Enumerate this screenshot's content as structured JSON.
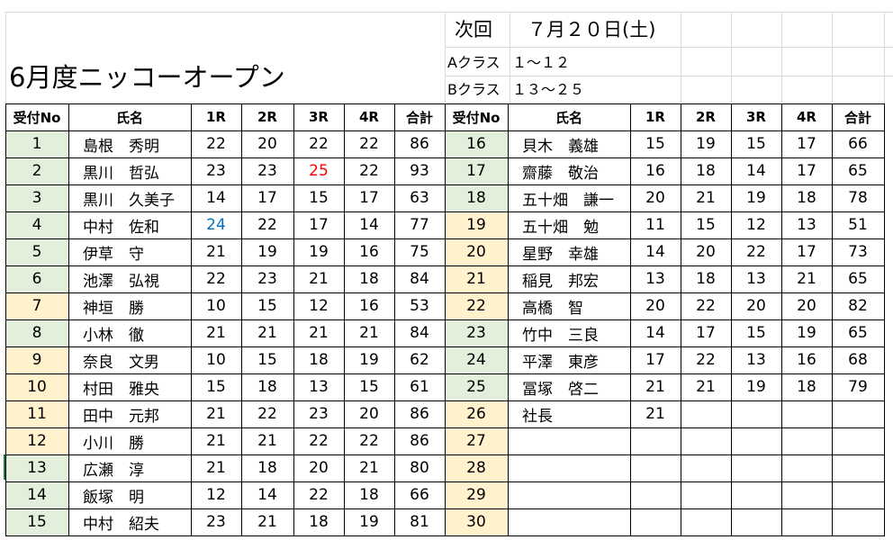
{
  "title": "6月度ニッコーオープン",
  "next": {
    "label": "次回",
    "date": "７月２０日(土)"
  },
  "classes": [
    {
      "label": "Aクラス",
      "range": "１～１２"
    },
    {
      "label": "Bクラス",
      "range": "１３～２５"
    }
  ],
  "headers": [
    "受付No",
    "氏名",
    "1R",
    "2R",
    "3R",
    "4R",
    "合計"
  ],
  "colors": {
    "green_fill": "#e2efda",
    "orange_fill": "#fff2cc",
    "red_score": "#ff0000",
    "blue_score": "#0070c0",
    "gridline": "#d9d9d9"
  },
  "left": [
    {
      "no": "1",
      "name": "島根　秀明",
      "r1": "22",
      "r2": "20",
      "r3": "22",
      "r4": "22",
      "total": "86",
      "fill": "green"
    },
    {
      "no": "2",
      "name": "黒川　哲弘",
      "r1": "23",
      "r2": "23",
      "r3": "25",
      "r4": "22",
      "total": "93",
      "fill": "green",
      "r3_color": "red"
    },
    {
      "no": "3",
      "name": "黒川　久美子",
      "r1": "14",
      "r2": "17",
      "r3": "15",
      "r4": "17",
      "total": "63",
      "fill": "green"
    },
    {
      "no": "4",
      "name": "中村　佐和",
      "r1": "24",
      "r2": "22",
      "r3": "17",
      "r4": "14",
      "total": "77",
      "fill": "green",
      "r1_color": "blue"
    },
    {
      "no": "5",
      "name": "伊草　守",
      "r1": "21",
      "r2": "19",
      "r3": "19",
      "r4": "16",
      "total": "75",
      "fill": "green"
    },
    {
      "no": "6",
      "name": "池澤　弘視",
      "r1": "22",
      "r2": "23",
      "r3": "21",
      "r4": "18",
      "total": "84",
      "fill": "green"
    },
    {
      "no": "7",
      "name": "神垣　勝",
      "r1": "10",
      "r2": "15",
      "r3": "12",
      "r4": "16",
      "total": "53",
      "fill": "orange"
    },
    {
      "no": "8",
      "name": "小林　徹",
      "r1": "21",
      "r2": "21",
      "r3": "21",
      "r4": "21",
      "total": "84",
      "fill": "green"
    },
    {
      "no": "9",
      "name": "奈良　文男",
      "r1": "10",
      "r2": "15",
      "r3": "18",
      "r4": "19",
      "total": "62",
      "fill": "orange"
    },
    {
      "no": "10",
      "name": "村田　雅央",
      "r1": "15",
      "r2": "18",
      "r3": "13",
      "r4": "15",
      "total": "61",
      "fill": "orange"
    },
    {
      "no": "11",
      "name": "田中　元邦",
      "r1": "21",
      "r2": "22",
      "r3": "23",
      "r4": "20",
      "total": "86",
      "fill": "orange"
    },
    {
      "no": "12",
      "name": "小川　勝",
      "r1": "21",
      "r2": "21",
      "r3": "22",
      "r4": "22",
      "total": "86",
      "fill": "orange"
    },
    {
      "no": "13",
      "name": "広瀬　淳",
      "r1": "21",
      "r2": "18",
      "r3": "20",
      "r4": "21",
      "total": "80",
      "fill": "green"
    },
    {
      "no": "14",
      "name": "飯塚　明",
      "r1": "12",
      "r2": "14",
      "r3": "22",
      "r4": "18",
      "total": "66",
      "fill": "green"
    },
    {
      "no": "15",
      "name": "中村　紹夫",
      "r1": "23",
      "r2": "21",
      "r3": "18",
      "r4": "19",
      "total": "81",
      "fill": "green"
    }
  ],
  "right": [
    {
      "no": "16",
      "name": "貝木　義雄",
      "r1": "15",
      "r2": "19",
      "r3": "15",
      "r4": "17",
      "total": "66",
      "fill": "green"
    },
    {
      "no": "17",
      "name": "齋藤　敬治",
      "r1": "16",
      "r2": "18",
      "r3": "14",
      "r4": "17",
      "total": "65",
      "fill": "green"
    },
    {
      "no": "18",
      "name": "五十畑　謙一",
      "r1": "20",
      "r2": "21",
      "r3": "19",
      "r4": "18",
      "total": "78",
      "fill": "green"
    },
    {
      "no": "19",
      "name": "五十畑　勉",
      "r1": "11",
      "r2": "15",
      "r3": "12",
      "r4": "13",
      "total": "51",
      "fill": "orange"
    },
    {
      "no": "20",
      "name": "星野　幸雄",
      "r1": "14",
      "r2": "20",
      "r3": "22",
      "r4": "17",
      "total": "73",
      "fill": "orange"
    },
    {
      "no": "21",
      "name": "稲見　邦宏",
      "r1": "13",
      "r2": "18",
      "r3": "13",
      "r4": "21",
      "total": "65",
      "fill": "orange"
    },
    {
      "no": "22",
      "name": "高橋　智",
      "r1": "20",
      "r2": "22",
      "r3": "20",
      "r4": "20",
      "total": "82",
      "fill": "orange"
    },
    {
      "no": "23",
      "name": "竹中　三良",
      "r1": "14",
      "r2": "17",
      "r3": "15",
      "r4": "19",
      "total": "65",
      "fill": "green"
    },
    {
      "no": "24",
      "name": "平澤　東彦",
      "r1": "17",
      "r2": "22",
      "r3": "13",
      "r4": "16",
      "total": "68",
      "fill": "green"
    },
    {
      "no": "25",
      "name": "冨塚　啓二",
      "r1": "21",
      "r2": "21",
      "r3": "19",
      "r4": "18",
      "total": "79",
      "fill": "green"
    },
    {
      "no": "26",
      "name": "社長",
      "r1": "21",
      "r2": "",
      "r3": "",
      "r4": "",
      "total": "",
      "fill": "orange"
    },
    {
      "no": "27",
      "name": "",
      "r1": "",
      "r2": "",
      "r3": "",
      "r4": "",
      "total": "",
      "fill": "orange"
    },
    {
      "no": "28",
      "name": "",
      "r1": "",
      "r2": "",
      "r3": "",
      "r4": "",
      "total": "",
      "fill": "orange"
    },
    {
      "no": "29",
      "name": "",
      "r1": "",
      "r2": "",
      "r3": "",
      "r4": "",
      "total": "",
      "fill": "orange"
    },
    {
      "no": "30",
      "name": "",
      "r1": "",
      "r2": "",
      "r3": "",
      "r4": "",
      "total": "",
      "fill": "orange"
    }
  ]
}
